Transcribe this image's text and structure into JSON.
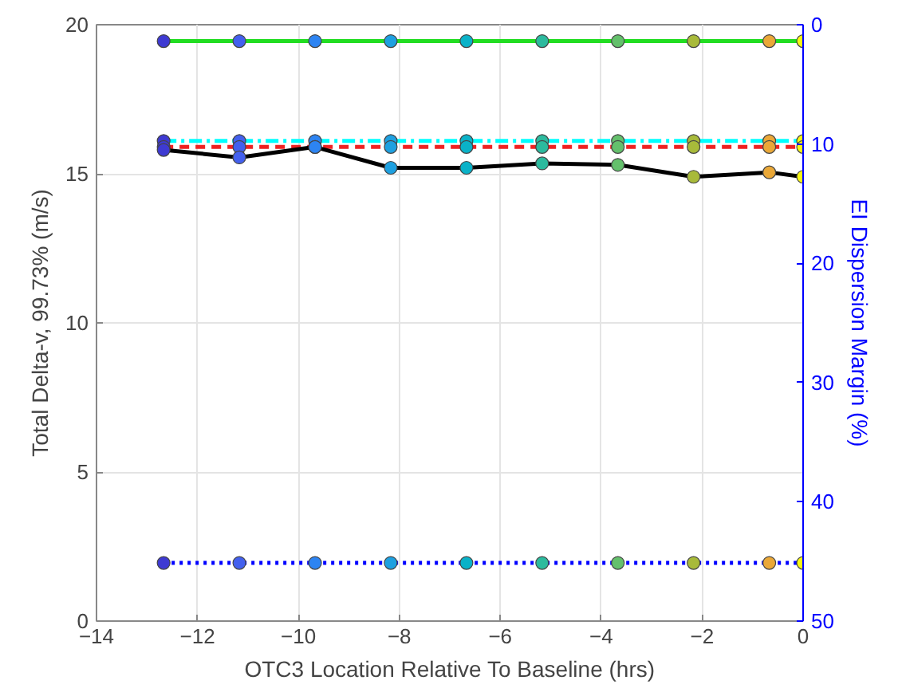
{
  "chart_data": {
    "type": "line",
    "xlabel": "OTC3 Location Relative To Baseline (hrs)",
    "ylabel": "Total Delta-v, 99.73% (m/s)",
    "y2label": "EI Dispersion Margin (%)",
    "x": [
      -12.67,
      -11.17,
      -9.67,
      -8.17,
      -6.67,
      -5.17,
      -3.67,
      -2.17,
      -0.67,
      0
    ],
    "xlim": [
      -14,
      0
    ],
    "xticks": [
      -14,
      -12,
      -10,
      -8,
      -6,
      -4,
      -2,
      0
    ],
    "ylim": [
      0,
      20
    ],
    "yticks": [
      0,
      5,
      10,
      15,
      20
    ],
    "y2lim": [
      50,
      0
    ],
    "y2ticks": [
      0,
      10,
      20,
      30,
      40,
      50
    ],
    "grid": true,
    "marker": "circle",
    "series": [
      {
        "color": "#22dd22",
        "line_style": "solid",
        "values": [
          19.45,
          19.45,
          19.45,
          19.45,
          19.45,
          19.45,
          19.45,
          19.45,
          19.45,
          19.45
        ],
        "colors": [
          "#3e3ad2",
          "#4360ee",
          "#2d84f2",
          "#1ea0e0",
          "#0ab2c8",
          "#2cba9e",
          "#64c06c",
          "#a8ba3a",
          "#eaa838",
          "#f8f812"
        ]
      },
      {
        "color": "#00ffff",
        "line_style": "dashdot",
        "values": [
          16.1,
          16.1,
          16.1,
          16.1,
          16.1,
          16.1,
          16.1,
          16.1,
          16.1,
          16.1
        ],
        "colors": [
          "#3e3ad2",
          "#4360ee",
          "#2d84f2",
          "#1ea0e0",
          "#0ab2c8",
          "#2cba9e",
          "#64c06c",
          "#a8ba3a",
          "#eaa838",
          "#f8f812"
        ]
      },
      {
        "color": "#ee2222",
        "line_style": "dashed",
        "values": [
          15.9,
          15.9,
          15.9,
          15.9,
          15.9,
          15.9,
          15.9,
          15.9,
          15.9,
          15.9
        ],
        "colors": [
          "#3e3ad2",
          "#4360ee",
          "#2d84f2",
          "#1ea0e0",
          "#0ab2c8",
          "#2cba9e",
          "#64c06c",
          "#a8ba3a",
          "#eaa838",
          "#f8f812"
        ]
      },
      {
        "color": "#000000",
        "line_style": "solid",
        "values": [
          15.8,
          15.55,
          15.9,
          15.2,
          15.2,
          15.35,
          15.3,
          14.9,
          15.05,
          14.9
        ],
        "colors": [
          "#3e3ad2",
          "#4360ee",
          "#2d84f2",
          "#1ea0e0",
          "#0ab2c8",
          "#2cba9e",
          "#64c06c",
          "#a8ba3a",
          "#eaa838",
          "#f8f812"
        ]
      },
      {
        "color": "#0000ff",
        "line_style": "dotted",
        "values": [
          1.95,
          1.95,
          1.95,
          1.95,
          1.95,
          1.95,
          1.95,
          1.95,
          1.95,
          1.95
        ],
        "colors": [
          "#3e3ad2",
          "#4360ee",
          "#2d84f2",
          "#1ea0e0",
          "#0ab2c8",
          "#2cba9e",
          "#64c06c",
          "#a8ba3a",
          "#eaa838",
          "#f8f812"
        ]
      }
    ]
  }
}
